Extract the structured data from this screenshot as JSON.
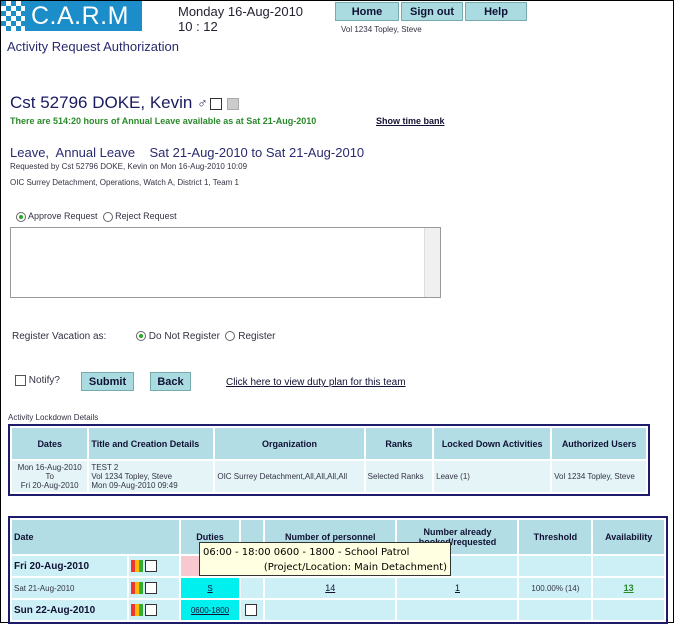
{
  "header": {
    "logo": "C.A.R.M",
    "date": "Monday 16-Aug-2010",
    "time": "10 : 12",
    "nav": [
      "Home",
      "Sign out",
      "Help"
    ],
    "user": "Vol 1234 Topley, Steve"
  },
  "page_title": "Activity Request Authorization",
  "employee": {
    "name": "Cst 52796 DOKE, Kevin",
    "gender_symbol": "♂",
    "leave_balance": "There are 514:20 hours of Annual Leave available as at Sat 21-Aug-2010",
    "show_time_bank": "Show time bank"
  },
  "request": {
    "summary": "Leave,  Annual Leave    Sat 21-Aug-2010 to Sat 21-Aug-2010",
    "requested_by": "Requested by Cst 52796 DOKE, Kevin on Mon 16-Aug-2010 10:09",
    "org": "OIC Surrey Detachment, Operations, Watch A, District 1, Team 1"
  },
  "decision": {
    "approve": "Approve Request",
    "reject": "Reject Request",
    "selected": "approve",
    "comment": ""
  },
  "vacation": {
    "label": "Register Vacation as:",
    "options": [
      "Do Not Register",
      "Register"
    ],
    "selected": "Do Not Register"
  },
  "actions": {
    "notify": "Notify?",
    "notify_checked": false,
    "submit": "Submit",
    "back": "Back",
    "duty_plan_link": "Click here to view duty plan for this team"
  },
  "lockdown": {
    "caption": "Activity Lockdown Details",
    "headers": [
      "Dates",
      "Title and Creation Details",
      "Organization",
      "Ranks",
      "Locked Down Activities",
      "Authorized Users"
    ],
    "row": {
      "dates": [
        "Mon 16-Aug-2010",
        "To",
        "Fri 20-Aug-2010"
      ],
      "title": [
        "TEST 2",
        "Vol 1234 Topley, Steve",
        "Mon 09-Aug-2010 09:49"
      ],
      "organization": "OIC Surrey Detachment,All,All,All,All",
      "ranks": "Selected Ranks",
      "activities": "Leave (1)",
      "users": "Vol 1234 Topley, Steve"
    }
  },
  "schedule": {
    "headers": [
      "Date",
      "Duties",
      "",
      "Number of personnel",
      "Number already booked/requested",
      "Threshold",
      "Availability"
    ],
    "rows": [
      {
        "date": "Fri 20-Aug-2010",
        "bold": true,
        "duty": "R",
        "duty_color": "#f7c8d0",
        "personnel": "",
        "booked": "",
        "threshold": "",
        "availability": ""
      },
      {
        "date": "Sat 21-Aug-2010",
        "bold": false,
        "duty": "S",
        "duty_color": "#00f0f0",
        "personnel": "14",
        "booked": "1",
        "threshold": "100.00% (14)",
        "availability": "13"
      },
      {
        "date": "Sun 22-Aug-2010",
        "bold": true,
        "duty": "0600-1800",
        "duty_color": "#00f0f0",
        "personnel": "",
        "booked": "",
        "threshold": "",
        "availability": ""
      }
    ]
  },
  "tooltip": {
    "line1": "06:00 - 18:00  0600 - 1800 - School Patrol",
    "line2": "(Project/Location: Main Detachment)"
  }
}
